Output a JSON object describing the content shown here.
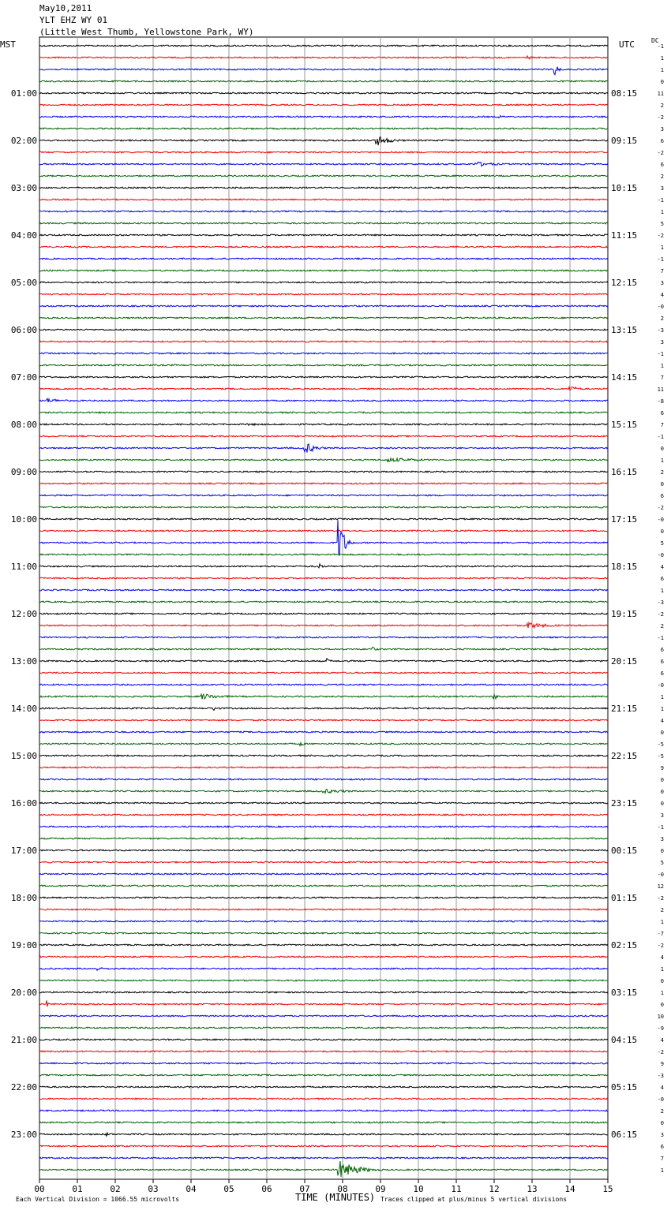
{
  "header": {
    "date": "May10,2011",
    "station": "YLT EHZ WY 01",
    "location": "(Little West Thumb, Yellowstone Park, WY)"
  },
  "labels": {
    "left_tz": "MST",
    "right_tz": "UTC",
    "dc": "DC",
    "xlabel": "TIME (MINUTES)",
    "scale_note": "Each Vertical Division = 1066.55 microvolts",
    "clip_note": "Traces clipped at plus/minus 5 vertical divisions"
  },
  "colors": {
    "trace_cycle": [
      "#000000",
      "#ff0000",
      "#0000ff",
      "#006400"
    ],
    "grid": "#999999"
  },
  "chart_data": {
    "type": "line",
    "title": "May10,2011",
    "xlabel": "TIME (MINUTES)",
    "xlim": [
      0,
      15
    ],
    "x_ticks": [
      "00",
      "01",
      "02",
      "03",
      "04",
      "05",
      "06",
      "07",
      "08",
      "09",
      "10",
      "11",
      "12",
      "13",
      "14",
      "15"
    ],
    "traces_per_hour": 4,
    "trace_count": 96,
    "mst_hour_labels": [
      "",
      "01:00",
      "02:00",
      "03:00",
      "04:00",
      "05:00",
      "06:00",
      "07:00",
      "08:00",
      "09:00",
      "10:00",
      "11:00",
      "12:00",
      "13:00",
      "14:00",
      "15:00",
      "16:00",
      "17:00",
      "18:00",
      "19:00",
      "20:00",
      "21:00",
      "22:00",
      "23:00"
    ],
    "utc_hour_labels": [
      "",
      "08:15",
      "09:15",
      "10:15",
      "11:15",
      "12:15",
      "13:15",
      "14:15",
      "15:15",
      "16:15",
      "17:15",
      "18:15",
      "19:15",
      "20:15",
      "21:15",
      "22:15",
      "23:15",
      "00:15",
      "01:15",
      "02:15",
      "03:15",
      "04:15",
      "05:15",
      "06:15"
    ],
    "dc_offsets": [
      "-1",
      "1",
      "1",
      "0",
      "11",
      "2",
      "-2",
      "3",
      "6",
      "-2",
      "6",
      "2",
      "3",
      "-1",
      "1",
      "5",
      "-2",
      "1",
      "-1",
      "7",
      "3",
      "4",
      "-0",
      "2",
      "-3",
      "3",
      "-1",
      "1",
      "7",
      "11",
      "-8",
      "6",
      "7",
      "-1",
      "0",
      "1",
      "2",
      "0",
      "6",
      "-2",
      "-0",
      "0",
      "5",
      "-0",
      "4",
      "6",
      "1",
      "-3",
      "-2",
      "2",
      "-1",
      "6",
      "6",
      "6",
      "-0",
      "1",
      "1",
      "4",
      "0",
      "-5",
      "-5",
      "9",
      "0",
      "0",
      "0",
      "3",
      "-1",
      "3",
      "0",
      "5",
      "-0",
      "12",
      "-2",
      "2",
      "1",
      "-7",
      "-2",
      "4",
      "1",
      "0",
      "1",
      "0",
      "10",
      "-9",
      "4",
      "-2",
      "9",
      "-3",
      "4",
      "-0",
      "2",
      "0",
      "3",
      "6",
      "7",
      "1"
    ],
    "events": [
      {
        "trace": 2,
        "minute": 13.6,
        "amp": 8,
        "dur": 0.3
      },
      {
        "trace": 1,
        "minute": 12.9,
        "amp": 2.5,
        "dur": 0.4
      },
      {
        "trace": 6,
        "minute": 12.1,
        "amp": 2.5,
        "dur": 0.5
      },
      {
        "trace": 8,
        "minute": 8.9,
        "amp": 7,
        "dur": 1.0
      },
      {
        "trace": 10,
        "minute": 11.5,
        "amp": 3.5,
        "dur": 1.6
      },
      {
        "trace": 29,
        "minute": 14.0,
        "amp": 4,
        "dur": 0.8
      },
      {
        "trace": 30,
        "minute": 0.2,
        "amp": 3,
        "dur": 1.5
      },
      {
        "trace": 32,
        "minute": 5.5,
        "amp": 1.5,
        "dur": 2.5
      },
      {
        "trace": 34,
        "minute": 7.0,
        "amp": 8,
        "dur": 0.8
      },
      {
        "trace": 35,
        "minute": 9.2,
        "amp": 3,
        "dur": 2.8
      },
      {
        "trace": 42,
        "minute": 7.9,
        "amp": 30,
        "dur": 0.4
      },
      {
        "trace": 44,
        "minute": 7.4,
        "amp": 5,
        "dur": 0.2
      },
      {
        "trace": 49,
        "minute": 12.9,
        "amp": 4,
        "dur": 1.7
      },
      {
        "trace": 51,
        "minute": 8.8,
        "amp": 3,
        "dur": 0.3
      },
      {
        "trace": 52,
        "minute": 7.6,
        "amp": 3,
        "dur": 0.3
      },
      {
        "trace": 55,
        "minute": 4.3,
        "amp": 4,
        "dur": 1.5
      },
      {
        "trace": 55,
        "minute": 12.0,
        "amp": 5,
        "dur": 0.2
      },
      {
        "trace": 56,
        "minute": 4.6,
        "amp": 3,
        "dur": 0.5
      },
      {
        "trace": 59,
        "minute": 6.9,
        "amp": 3,
        "dur": 0.3
      },
      {
        "trace": 63,
        "minute": 7.5,
        "amp": 3,
        "dur": 2.0
      },
      {
        "trace": 78,
        "minute": 1.5,
        "amp": 3,
        "dur": 0.6
      },
      {
        "trace": 81,
        "minute": 0.2,
        "amp": 4,
        "dur": 0.2
      },
      {
        "trace": 92,
        "minute": 1.8,
        "amp": 3,
        "dur": 0.3
      },
      {
        "trace": 95,
        "minute": 7.9,
        "amp": 12,
        "dur": 1.3
      }
    ]
  }
}
